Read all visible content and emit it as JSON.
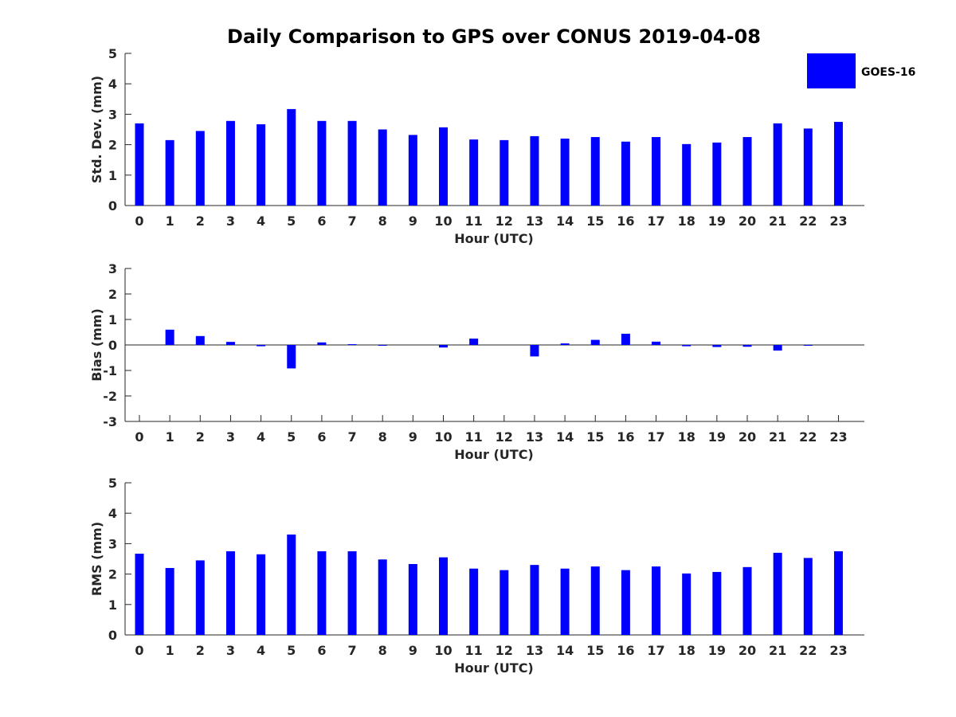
{
  "title": "Daily Comparison to GPS over CONUS 2019-04-08",
  "legend": {
    "label": "GOES-16",
    "color": "#0000ff"
  },
  "chart_data": [
    {
      "type": "bar",
      "id": "stddev",
      "ylabel": "Std. Dev. (mm)",
      "xlabel": "Hour (UTC)",
      "ylim": [
        0,
        5
      ],
      "yticks": [
        0,
        1,
        2,
        3,
        4,
        5
      ],
      "categories": [
        "0",
        "1",
        "2",
        "3",
        "4",
        "5",
        "6",
        "7",
        "8",
        "9",
        "10",
        "11",
        "12",
        "13",
        "14",
        "15",
        "16",
        "17",
        "18",
        "19",
        "20",
        "21",
        "22",
        "23"
      ],
      "series": [
        {
          "name": "GOES-16",
          "color": "#0000ff",
          "values": [
            2.7,
            2.15,
            2.45,
            2.78,
            2.67,
            3.17,
            2.78,
            2.78,
            2.5,
            2.32,
            2.57,
            2.17,
            2.15,
            2.28,
            2.2,
            2.25,
            2.1,
            2.25,
            2.02,
            2.07,
            2.25,
            2.7,
            2.53,
            2.75
          ]
        }
      ]
    },
    {
      "type": "bar",
      "id": "bias",
      "ylabel": "Bias (mm)",
      "xlabel": "Hour (UTC)",
      "ylim": [
        -3,
        3
      ],
      "yticks": [
        -3,
        -2,
        -1,
        0,
        1,
        2,
        3
      ],
      "zero_line": true,
      "categories": [
        "0",
        "1",
        "2",
        "3",
        "4",
        "5",
        "6",
        "7",
        "8",
        "9",
        "10",
        "11",
        "12",
        "13",
        "14",
        "15",
        "16",
        "17",
        "18",
        "19",
        "20",
        "21",
        "22",
        "23"
      ],
      "series": [
        {
          "name": "GOES-16",
          "color": "#0000ff",
          "values": [
            0.0,
            0.6,
            0.35,
            0.12,
            -0.05,
            -0.92,
            0.1,
            0.03,
            -0.01,
            0.0,
            -0.1,
            0.25,
            0.0,
            -0.45,
            0.06,
            0.2,
            0.44,
            0.13,
            -0.05,
            -0.08,
            -0.07,
            -0.22,
            -0.01,
            0.0
          ]
        }
      ]
    },
    {
      "type": "bar",
      "id": "rms",
      "ylabel": "RMS (mm)",
      "xlabel": "Hour (UTC)",
      "ylim": [
        0,
        5
      ],
      "yticks": [
        0,
        1,
        2,
        3,
        4,
        5
      ],
      "categories": [
        "0",
        "1",
        "2",
        "3",
        "4",
        "5",
        "6",
        "7",
        "8",
        "9",
        "10",
        "11",
        "12",
        "13",
        "14",
        "15",
        "16",
        "17",
        "18",
        "19",
        "20",
        "21",
        "22",
        "23"
      ],
      "series": [
        {
          "name": "GOES-16",
          "color": "#0000ff",
          "values": [
            2.67,
            2.2,
            2.45,
            2.75,
            2.65,
            3.3,
            2.75,
            2.75,
            2.48,
            2.33,
            2.55,
            2.18,
            2.13,
            2.3,
            2.18,
            2.25,
            2.13,
            2.25,
            2.02,
            2.07,
            2.23,
            2.7,
            2.53,
            2.75
          ]
        }
      ]
    }
  ]
}
